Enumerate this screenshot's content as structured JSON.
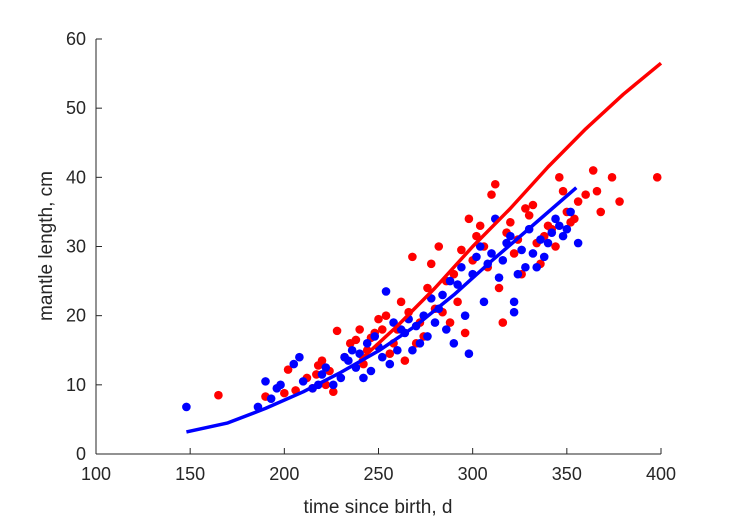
{
  "chart_data": {
    "type": "scatter",
    "title": "",
    "xlabel": "time since birth, d",
    "ylabel": "mantle length, cm",
    "xlim": [
      100,
      400
    ],
    "ylim": [
      0,
      60
    ],
    "xticks": [
      100,
      150,
      200,
      250,
      300,
      350,
      400
    ],
    "yticks": [
      0,
      10,
      20,
      30,
      40,
      50,
      60
    ],
    "grid": false,
    "legend": "none",
    "series": [
      {
        "kind": "scatter",
        "color": "#ff0000",
        "points": [
          [
            165,
            8.5
          ],
          [
            190,
            8.3
          ],
          [
            200,
            8.8
          ],
          [
            202,
            12.2
          ],
          [
            206,
            9.2
          ],
          [
            212,
            11.0
          ],
          [
            215,
            9.5
          ],
          [
            217,
            11.5
          ],
          [
            218,
            12.8
          ],
          [
            220,
            13.5
          ],
          [
            222,
            10.0
          ],
          [
            224,
            12.0
          ],
          [
            226,
            9.0
          ],
          [
            228,
            17.8
          ],
          [
            232,
            14.0
          ],
          [
            235,
            16.0
          ],
          [
            238,
            16.5
          ],
          [
            240,
            18.0
          ],
          [
            242,
            13.0
          ],
          [
            244,
            15.0
          ],
          [
            246,
            16.8
          ],
          [
            248,
            17.5
          ],
          [
            250,
            19.5
          ],
          [
            252,
            18.0
          ],
          [
            254,
            20.0
          ],
          [
            256,
            14.5
          ],
          [
            258,
            16.0
          ],
          [
            260,
            18.0
          ],
          [
            262,
            22.0
          ],
          [
            264,
            13.5
          ],
          [
            266,
            20.5
          ],
          [
            268,
            28.5
          ],
          [
            270,
            16.0
          ],
          [
            272,
            19.0
          ],
          [
            274,
            17.0
          ],
          [
            276,
            24.0
          ],
          [
            278,
            27.5
          ],
          [
            280,
            21.0
          ],
          [
            282,
            30.0
          ],
          [
            284,
            20.5
          ],
          [
            286,
            25.0
          ],
          [
            288,
            19.0
          ],
          [
            290,
            26.0
          ],
          [
            292,
            22.0
          ],
          [
            294,
            29.5
          ],
          [
            296,
            17.5
          ],
          [
            298,
            34.0
          ],
          [
            300,
            28.0
          ],
          [
            302,
            31.5
          ],
          [
            304,
            33.0
          ],
          [
            306,
            30.0
          ],
          [
            308,
            27.0
          ],
          [
            310,
            37.5
          ],
          [
            312,
            39.0
          ],
          [
            314,
            24.0
          ],
          [
            316,
            19.0
          ],
          [
            318,
            32.0
          ],
          [
            320,
            33.5
          ],
          [
            322,
            29.0
          ],
          [
            324,
            31.0
          ],
          [
            326,
            26.0
          ],
          [
            328,
            35.5
          ],
          [
            330,
            34.5
          ],
          [
            332,
            36.0
          ],
          [
            334,
            30.5
          ],
          [
            336,
            27.5
          ],
          [
            338,
            31.5
          ],
          [
            340,
            33.0
          ],
          [
            342,
            32.5
          ],
          [
            344,
            30.0
          ],
          [
            346,
            40.0
          ],
          [
            348,
            38.0
          ],
          [
            350,
            35.0
          ],
          [
            352,
            33.5
          ],
          [
            354,
            34.0
          ],
          [
            356,
            36.5
          ],
          [
            360,
            37.5
          ],
          [
            364,
            41.0
          ],
          [
            366,
            38.0
          ],
          [
            368,
            35.0
          ],
          [
            374,
            40.0
          ],
          [
            378,
            36.5
          ],
          [
            398,
            40.0
          ]
        ]
      },
      {
        "kind": "scatter",
        "color": "#0000ff",
        "points": [
          [
            148,
            6.8
          ],
          [
            186,
            6.8
          ],
          [
            190,
            10.5
          ],
          [
            193,
            8.0
          ],
          [
            196,
            9.5
          ],
          [
            198,
            10.0
          ],
          [
            205,
            13.0
          ],
          [
            208,
            14.0
          ],
          [
            210,
            10.5
          ],
          [
            215,
            9.5
          ],
          [
            218,
            10.0
          ],
          [
            220,
            11.5
          ],
          [
            222,
            12.5
          ],
          [
            226,
            10.0
          ],
          [
            230,
            11.0
          ],
          [
            232,
            14.0
          ],
          [
            234,
            13.5
          ],
          [
            236,
            15.0
          ],
          [
            238,
            12.5
          ],
          [
            240,
            14.5
          ],
          [
            242,
            11.0
          ],
          [
            244,
            16.0
          ],
          [
            246,
            12.0
          ],
          [
            248,
            17.0
          ],
          [
            250,
            15.5
          ],
          [
            252,
            14.0
          ],
          [
            254,
            23.5
          ],
          [
            256,
            13.0
          ],
          [
            258,
            19.0
          ],
          [
            260,
            15.0
          ],
          [
            262,
            18.0
          ],
          [
            264,
            17.5
          ],
          [
            266,
            19.5
          ],
          [
            268,
            15.0
          ],
          [
            270,
            18.5
          ],
          [
            272,
            16.0
          ],
          [
            274,
            20.0
          ],
          [
            276,
            17.0
          ],
          [
            278,
            22.5
          ],
          [
            280,
            19.0
          ],
          [
            282,
            21.0
          ],
          [
            284,
            23.0
          ],
          [
            286,
            18.0
          ],
          [
            288,
            25.0
          ],
          [
            290,
            16.0
          ],
          [
            292,
            24.5
          ],
          [
            294,
            27.0
          ],
          [
            296,
            20.0
          ],
          [
            298,
            14.5
          ],
          [
            300,
            26.0
          ],
          [
            302,
            28.5
          ],
          [
            304,
            30.0
          ],
          [
            306,
            22.0
          ],
          [
            308,
            27.5
          ],
          [
            310,
            29.0
          ],
          [
            312,
            34.0
          ],
          [
            314,
            25.5
          ],
          [
            316,
            28.0
          ],
          [
            318,
            30.5
          ],
          [
            320,
            31.5
          ],
          [
            322,
            20.5
          ],
          [
            322,
            22.0
          ],
          [
            324,
            26.0
          ],
          [
            326,
            29.5
          ],
          [
            328,
            27.0
          ],
          [
            330,
            32.5
          ],
          [
            332,
            29.0
          ],
          [
            334,
            27.0
          ],
          [
            336,
            31.0
          ],
          [
            338,
            28.5
          ],
          [
            340,
            30.5
          ],
          [
            342,
            32.0
          ],
          [
            344,
            34.0
          ],
          [
            346,
            33.0
          ],
          [
            348,
            31.5
          ],
          [
            350,
            32.5
          ],
          [
            352,
            35.0
          ],
          [
            356,
            30.5
          ]
        ]
      },
      {
        "kind": "line",
        "color": "#ff0000",
        "x": [
          240,
          260,
          280,
          300,
          320,
          340,
          360,
          380,
          400
        ],
        "y": [
          13.5,
          18.5,
          24.0,
          30.0,
          35.5,
          41.5,
          47.0,
          52.0,
          56.5
        ]
      },
      {
        "kind": "line",
        "color": "#0000ff",
        "x": [
          148,
          170,
          190,
          210,
          230,
          250,
          270,
          290,
          310,
          330,
          355
        ],
        "y": [
          3.2,
          4.5,
          6.6,
          9.0,
          11.8,
          14.9,
          18.6,
          23.0,
          27.9,
          32.6,
          38.5
        ]
      }
    ]
  }
}
